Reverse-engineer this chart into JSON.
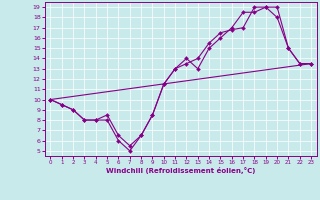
{
  "xlabel": "Windchill (Refroidissement éolien,°C)",
  "bg_color": "#c8eaea",
  "line_color": "#880088",
  "xlim": [
    -0.5,
    23.5
  ],
  "ylim": [
    4.5,
    19.5
  ],
  "yticks": [
    5,
    6,
    7,
    8,
    9,
    10,
    11,
    12,
    13,
    14,
    15,
    16,
    17,
    18,
    19
  ],
  "xticks": [
    0,
    1,
    2,
    3,
    4,
    5,
    6,
    7,
    8,
    9,
    10,
    11,
    12,
    13,
    14,
    15,
    16,
    17,
    18,
    19,
    20,
    21,
    22,
    23
  ],
  "line1_x": [
    0,
    1,
    2,
    3,
    4,
    5,
    6,
    7,
    8,
    9,
    10,
    11,
    12,
    13,
    14,
    15,
    16,
    17,
    18,
    19,
    20,
    21,
    22,
    23
  ],
  "line1_y": [
    10,
    9.5,
    9.0,
    8.0,
    8.0,
    8.0,
    6.0,
    5.0,
    6.5,
    8.5,
    11.5,
    13.0,
    14.0,
    13.0,
    15.0,
    16.0,
    17.0,
    18.5,
    18.5,
    19.0,
    18.0,
    15.0,
    13.5,
    13.5
  ],
  "line2_x": [
    0,
    23
  ],
  "line2_y": [
    10,
    13.5
  ],
  "line3_x": [
    0,
    1,
    2,
    3,
    4,
    5,
    6,
    7,
    8,
    9,
    10,
    11,
    12,
    13,
    14,
    15,
    16,
    17,
    18,
    19,
    20,
    21,
    22,
    23
  ],
  "line3_y": [
    10,
    9.5,
    9.0,
    8.0,
    8.0,
    8.5,
    6.5,
    5.5,
    6.5,
    8.5,
    11.5,
    13.0,
    13.5,
    14.0,
    15.5,
    16.5,
    16.8,
    17.0,
    19.0,
    19.0,
    19.0,
    15.0,
    13.5,
    13.5
  ]
}
